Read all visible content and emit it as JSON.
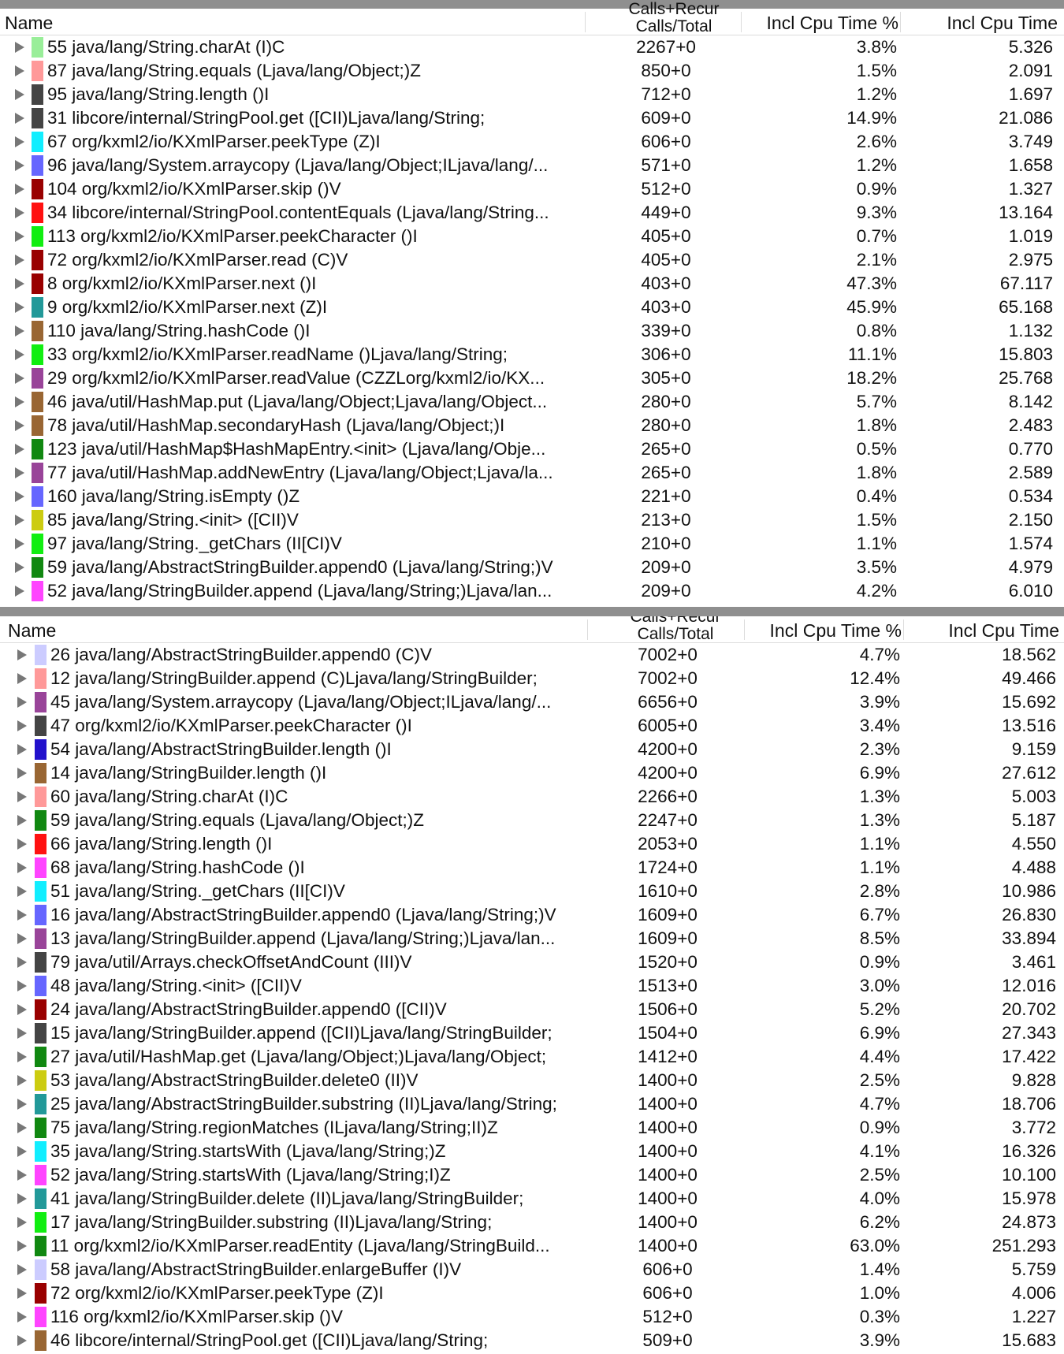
{
  "columns": {
    "name": "Name",
    "calls_line1": "Calls+Recur",
    "calls_line2": "Calls/Total",
    "pct": "Incl Cpu Time %",
    "time": "Incl Cpu Time"
  },
  "top_rows": [
    {
      "name": "55 java/lang/String.charAt (I)C",
      "calls": "2267+0",
      "pct": "3.8%",
      "time": "5.326",
      "color": "#99ee99"
    },
    {
      "name": "87 java/lang/String.equals (Ljava/lang/Object;)Z",
      "calls": "850+0",
      "pct": "1.5%",
      "time": "2.091",
      "color": "#ff9999"
    },
    {
      "name": "95 java/lang/String.length ()I",
      "calls": "712+0",
      "pct": "1.2%",
      "time": "1.697",
      "color": "#444444"
    },
    {
      "name": "31 libcore/internal/StringPool.get ([CII)Ljava/lang/String;",
      "calls": "609+0",
      "pct": "14.9%",
      "time": "21.086",
      "color": "#444444"
    },
    {
      "name": "67 org/kxml2/io/KXmlParser.peekType (Z)I",
      "calls": "606+0",
      "pct": "2.6%",
      "time": "3.749",
      "color": "#11eeff"
    },
    {
      "name": "96 java/lang/System.arraycopy (Ljava/lang/Object;ILjava/lang/...",
      "calls": "571+0",
      "pct": "1.2%",
      "time": "1.658",
      "color": "#6666ff"
    },
    {
      "name": "104 org/kxml2/io/KXmlParser.skip ()V",
      "calls": "512+0",
      "pct": "0.9%",
      "time": "1.327",
      "color": "#990000"
    },
    {
      "name": "34 libcore/internal/StringPool.contentEquals (Ljava/lang/String...",
      "calls": "449+0",
      "pct": "9.3%",
      "time": "13.164",
      "color": "#ff1111"
    },
    {
      "name": "113 org/kxml2/io/KXmlParser.peekCharacter ()I",
      "calls": "405+0",
      "pct": "0.7%",
      "time": "1.019",
      "color": "#11ee11"
    },
    {
      "name": "72 org/kxml2/io/KXmlParser.read (C)V",
      "calls": "405+0",
      "pct": "2.1%",
      "time": "2.975",
      "color": "#990000"
    },
    {
      "name": "8 org/kxml2/io/KXmlParser.next ()I",
      "calls": "403+0",
      "pct": "47.3%",
      "time": "67.117",
      "color": "#990000"
    },
    {
      "name": "9 org/kxml2/io/KXmlParser.next (Z)I",
      "calls": "403+0",
      "pct": "45.9%",
      "time": "65.168",
      "color": "#229999"
    },
    {
      "name": "110 java/lang/String.hashCode ()I",
      "calls": "339+0",
      "pct": "0.8%",
      "time": "1.132",
      "color": "#996633"
    },
    {
      "name": "33 org/kxml2/io/KXmlParser.readName ()Ljava/lang/String;",
      "calls": "306+0",
      "pct": "11.1%",
      "time": "15.803",
      "color": "#11ee11"
    },
    {
      "name": "29 org/kxml2/io/KXmlParser.readValue (CZZLorg/kxml2/io/KX...",
      "calls": "305+0",
      "pct": "18.2%",
      "time": "25.768",
      "color": "#994499"
    },
    {
      "name": "46 java/util/HashMap.put (Ljava/lang/Object;Ljava/lang/Object...",
      "calls": "280+0",
      "pct": "5.7%",
      "time": "8.142",
      "color": "#996633"
    },
    {
      "name": "78 java/util/HashMap.secondaryHash (Ljava/lang/Object;)I",
      "calls": "280+0",
      "pct": "1.8%",
      "time": "2.483",
      "color": "#996633"
    },
    {
      "name": "123 java/util/HashMap$HashMapEntry.<init> (Ljava/lang/Obje...",
      "calls": "265+0",
      "pct": "0.5%",
      "time": "0.770",
      "color": "#118811"
    },
    {
      "name": "77 java/util/HashMap.addNewEntry (Ljava/lang/Object;Ljava/la...",
      "calls": "265+0",
      "pct": "1.8%",
      "time": "2.589",
      "color": "#994499"
    },
    {
      "name": "160 java/lang/String.isEmpty ()Z",
      "calls": "221+0",
      "pct": "0.4%",
      "time": "0.534",
      "color": "#6666ff"
    },
    {
      "name": "85 java/lang/String.<init> ([CII)V",
      "calls": "213+0",
      "pct": "1.5%",
      "time": "2.150",
      "color": "#cccc11"
    },
    {
      "name": "97 java/lang/String._getChars (II[CI)V",
      "calls": "210+0",
      "pct": "1.1%",
      "time": "1.574",
      "color": "#11ee11"
    },
    {
      "name": "59 java/lang/AbstractStringBuilder.append0 (Ljava/lang/String;)V",
      "calls": "209+0",
      "pct": "3.5%",
      "time": "4.979",
      "color": "#118811"
    },
    {
      "name": "52 java/lang/StringBuilder.append (Ljava/lang/String;)Ljava/lan...",
      "calls": "209+0",
      "pct": "4.2%",
      "time": "6.010",
      "color": "#ff44ff"
    }
  ],
  "bottom_rows": [
    {
      "name": "26 java/lang/AbstractStringBuilder.append0 (C)V",
      "calls": "7002+0",
      "pct": "4.7%",
      "time": "18.562",
      "color": "#ccccff"
    },
    {
      "name": "12 java/lang/StringBuilder.append (C)Ljava/lang/StringBuilder;",
      "calls": "7002+0",
      "pct": "12.4%",
      "time": "49.466",
      "color": "#ff9999"
    },
    {
      "name": "45 java/lang/System.arraycopy (Ljava/lang/Object;ILjava/lang/...",
      "calls": "6656+0",
      "pct": "3.9%",
      "time": "15.692",
      "color": "#994499"
    },
    {
      "name": "47 org/kxml2/io/KXmlParser.peekCharacter ()I",
      "calls": "6005+0",
      "pct": "3.4%",
      "time": "13.516",
      "color": "#444444"
    },
    {
      "name": "54 java/lang/AbstractStringBuilder.length ()I",
      "calls": "4200+0",
      "pct": "2.3%",
      "time": "9.159",
      "color": "#2211cc"
    },
    {
      "name": "14 java/lang/StringBuilder.length ()I",
      "calls": "4200+0",
      "pct": "6.9%",
      "time": "27.612",
      "color": "#996633"
    },
    {
      "name": "60 java/lang/String.charAt (I)C",
      "calls": "2266+0",
      "pct": "1.3%",
      "time": "5.003",
      "color": "#ff9999"
    },
    {
      "name": "59 java/lang/String.equals (Ljava/lang/Object;)Z",
      "calls": "2247+0",
      "pct": "1.3%",
      "time": "5.187",
      "color": "#118811"
    },
    {
      "name": "66 java/lang/String.length ()I",
      "calls": "2053+0",
      "pct": "1.1%",
      "time": "4.550",
      "color": "#ff1111"
    },
    {
      "name": "68 java/lang/String.hashCode ()I",
      "calls": "1724+0",
      "pct": "1.1%",
      "time": "4.488",
      "color": "#ff44ff"
    },
    {
      "name": "51 java/lang/String._getChars (II[CI)V",
      "calls": "1610+0",
      "pct": "2.8%",
      "time": "10.986",
      "color": "#11eeff"
    },
    {
      "name": "16 java/lang/AbstractStringBuilder.append0 (Ljava/lang/String;)V",
      "calls": "1609+0",
      "pct": "6.7%",
      "time": "26.830",
      "color": "#6666ff"
    },
    {
      "name": "13 java/lang/StringBuilder.append (Ljava/lang/String;)Ljava/lan...",
      "calls": "1609+0",
      "pct": "8.5%",
      "time": "33.894",
      "color": "#994499"
    },
    {
      "name": "79 java/util/Arrays.checkOffsetAndCount (III)V",
      "calls": "1520+0",
      "pct": "0.9%",
      "time": "3.461",
      "color": "#444444"
    },
    {
      "name": "48 java/lang/String.<init> ([CII)V",
      "calls": "1513+0",
      "pct": "3.0%",
      "time": "12.016",
      "color": "#6666ff"
    },
    {
      "name": "24 java/lang/AbstractStringBuilder.append0 ([CII)V",
      "calls": "1506+0",
      "pct": "5.2%",
      "time": "20.702",
      "color": "#990000"
    },
    {
      "name": "15 java/lang/StringBuilder.append ([CII)Ljava/lang/StringBuilder;",
      "calls": "1504+0",
      "pct": "6.9%",
      "time": "27.343",
      "color": "#444444"
    },
    {
      "name": "27 java/util/HashMap.get (Ljava/lang/Object;)Ljava/lang/Object;",
      "calls": "1412+0",
      "pct": "4.4%",
      "time": "17.422",
      "color": "#118811"
    },
    {
      "name": "53 java/lang/AbstractStringBuilder.delete0 (II)V",
      "calls": "1400+0",
      "pct": "2.5%",
      "time": "9.828",
      "color": "#cccc11"
    },
    {
      "name": "25 java/lang/AbstractStringBuilder.substring (II)Ljava/lang/String;",
      "calls": "1400+0",
      "pct": "4.7%",
      "time": "18.706",
      "color": "#229999"
    },
    {
      "name": "75 java/lang/String.regionMatches (ILjava/lang/String;II)Z",
      "calls": "1400+0",
      "pct": "0.9%",
      "time": "3.772",
      "color": "#118811"
    },
    {
      "name": "35 java/lang/String.startsWith (Ljava/lang/String;)Z",
      "calls": "1400+0",
      "pct": "4.1%",
      "time": "16.326",
      "color": "#11eeff"
    },
    {
      "name": "52 java/lang/String.startsWith (Ljava/lang/String;I)Z",
      "calls": "1400+0",
      "pct": "2.5%",
      "time": "10.100",
      "color": "#ff44ff"
    },
    {
      "name": "41 java/lang/StringBuilder.delete (II)Ljava/lang/StringBuilder;",
      "calls": "1400+0",
      "pct": "4.0%",
      "time": "15.978",
      "color": "#229999"
    },
    {
      "name": "17 java/lang/StringBuilder.substring (II)Ljava/lang/String;",
      "calls": "1400+0",
      "pct": "6.2%",
      "time": "24.873",
      "color": "#11ee11"
    },
    {
      "name": "11 org/kxml2/io/KXmlParser.readEntity (Ljava/lang/StringBuild...",
      "calls": "1400+0",
      "pct": "63.0%",
      "time": "251.293",
      "color": "#118811"
    },
    {
      "name": "58 java/lang/AbstractStringBuilder.enlargeBuffer (I)V",
      "calls": "606+0",
      "pct": "1.4%",
      "time": "5.759",
      "color": "#ccccff"
    },
    {
      "name": "72 org/kxml2/io/KXmlParser.peekType (Z)I",
      "calls": "606+0",
      "pct": "1.0%",
      "time": "4.006",
      "color": "#990000"
    },
    {
      "name": "116 org/kxml2/io/KXmlParser.skip ()V",
      "calls": "512+0",
      "pct": "0.3%",
      "time": "1.227",
      "color": "#ff44ff"
    },
    {
      "name": "46 libcore/internal/StringPool.get ([CII)Ljava/lang/String;",
      "calls": "509+0",
      "pct": "3.9%",
      "time": "15.683",
      "color": "#996633"
    }
  ]
}
